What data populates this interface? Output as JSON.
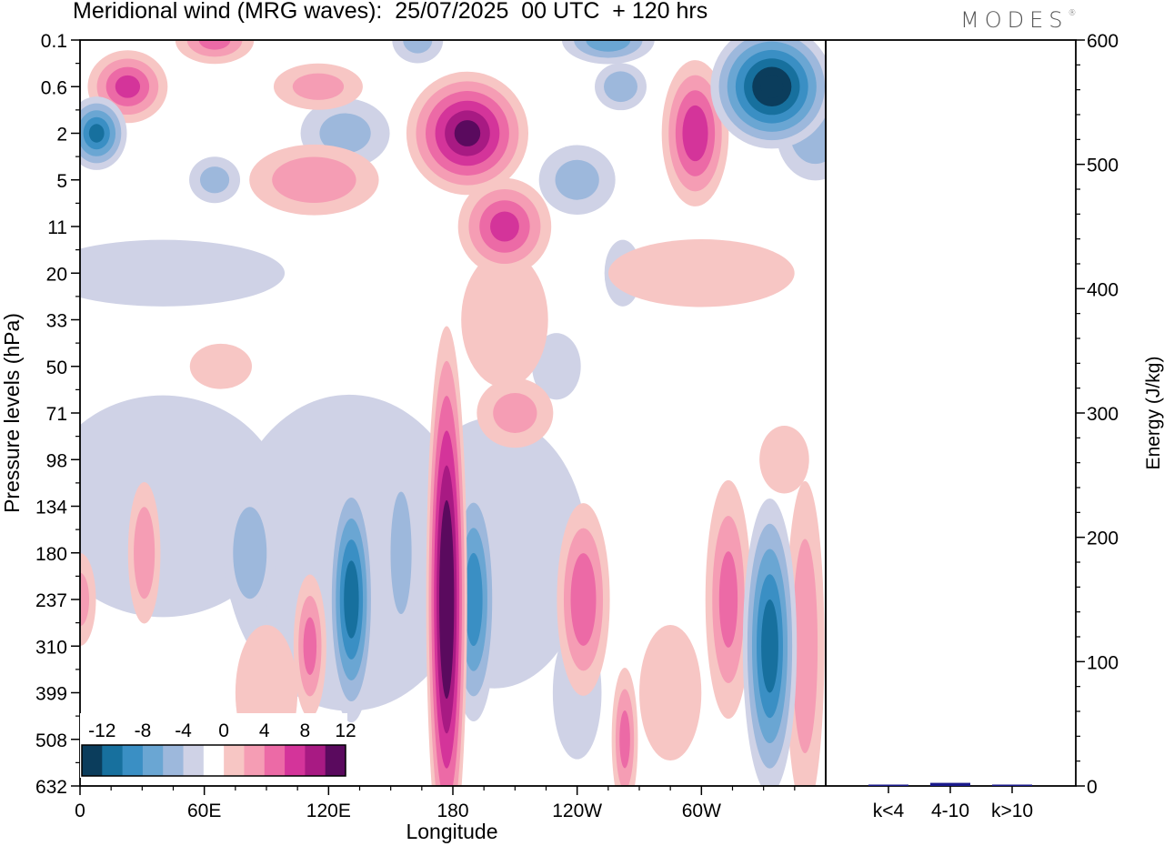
{
  "header": {
    "title": "Meridional wind (MRG waves):  25/07/2025  00 UTC  + 120 hrs",
    "logo": "MODES",
    "logo_mark": "®"
  },
  "colors": {
    "neg": [
      "#0b3d5c",
      "#17709e",
      "#3a8fc4",
      "#6aa6d3",
      "#9db8dc",
      "#cfd2e6"
    ],
    "zero": "#ffffff",
    "pos": [
      "#f7c6c4",
      "#f59db4",
      "#ec6aa6",
      "#d4349a",
      "#a81a83",
      "#5a0a5e"
    ],
    "bar": "#1a1a8c"
  },
  "chart_data": [
    {
      "type": "heatmap",
      "title": "Meridional wind (MRG waves):  25/07/2025  00 UTC  + 120 hrs",
      "xlabel": "Longitude",
      "ylabel": "Pressure levels (hPa)",
      "x_ticks": [
        "0",
        "60E",
        "120E",
        "180",
        "120W",
        "60W"
      ],
      "x_tick_values": [
        0,
        60,
        120,
        180,
        240,
        300
      ],
      "xlim": [
        0,
        360
      ],
      "y_ticks": [
        "0.1",
        "0.6",
        "2",
        "5",
        "11",
        "20",
        "33",
        "50",
        "71",
        "98",
        "134",
        "180",
        "237",
        "310",
        "399",
        "508",
        "632"
      ],
      "colorbar": {
        "ticks": [
          "-12",
          "-8",
          "-4",
          "0",
          "4",
          "8",
          "12"
        ],
        "levels": [
          -14,
          -12,
          -10,
          -8,
          -6,
          -4,
          -2,
          2,
          4,
          6,
          8,
          10,
          12,
          14
        ]
      },
      "features": [
        {
          "lon": 177,
          "level": "237",
          "lon_width": 6,
          "level_span": 11,
          "value": 15
        },
        {
          "lon": 190,
          "level": "237",
          "lon_width": 7,
          "level_span": 5,
          "value": -9
        },
        {
          "lon": 131,
          "level": "237",
          "lon_width": 7,
          "level_span": 5,
          "value": -11
        },
        {
          "lon": 333,
          "level": "310",
          "lon_width": 8,
          "level_span": 6,
          "value": -11
        },
        {
          "lon": 243,
          "level": "237",
          "lon_width": 8,
          "level_span": 4,
          "value": 7
        },
        {
          "lon": 313,
          "level": "237",
          "lon_width": 7,
          "level_span": 5,
          "value": 6
        },
        {
          "lon": 82,
          "level": "180",
          "lon_width": 8,
          "level_span": 3,
          "value": -5
        },
        {
          "lon": 155,
          "level": "180",
          "lon_width": 5,
          "level_span": 4,
          "value": -5
        },
        {
          "lon": 31,
          "level": "180",
          "lon_width": 5,
          "level_span": 3,
          "value": 5
        },
        {
          "lon": 111,
          "level": "310",
          "lon_width": 5,
          "level_span": 3,
          "value": 6
        },
        {
          "lon": 263,
          "level": "508",
          "lon_width": 4,
          "level_span": 3,
          "value": 6
        },
        {
          "lon": 350,
          "level": "310",
          "lon_width": 6,
          "level_span": 7,
          "value": 5
        },
        {
          "lon": 187,
          "level": "2",
          "lon_width": 18,
          "level_span": 2.5,
          "value": 12
        },
        {
          "lon": 205,
          "level": "11",
          "lon_width": 14,
          "level_span": 2,
          "value": 8
        },
        {
          "lon": 297,
          "level": "2",
          "lon_width": 10,
          "level_span": 3,
          "value": 9
        },
        {
          "lon": 334,
          "level": "0.6",
          "lon_width": 18,
          "level_span": 2.5,
          "value": -14
        },
        {
          "lon": 8,
          "level": "2",
          "lon_width": 9,
          "level_span": 1.5,
          "value": -10
        },
        {
          "lon": 23,
          "level": "0.6",
          "lon_width": 12,
          "level_span": 1.5,
          "value": 8
        },
        {
          "lon": 65,
          "level": "0.1",
          "lon_width": 12,
          "level_span": 1,
          "value": 6
        },
        {
          "lon": 255,
          "level": "0.1",
          "lon_width": 14,
          "level_span": 1,
          "value": -7
        },
        {
          "lon": 261,
          "level": "0.6",
          "lon_width": 8,
          "level_span": 1,
          "value": -5
        },
        {
          "lon": 240,
          "level": "5",
          "lon_width": 12,
          "level_span": 1.5,
          "value": -4
        },
        {
          "lon": 128,
          "level": "2",
          "lon_width": 14,
          "level_span": 1.5,
          "value": -4
        },
        {
          "lon": 65,
          "level": "5",
          "lon_width": 8,
          "level_span": 1,
          "value": -4
        },
        {
          "lon": 113,
          "level": "5",
          "lon_width": 20,
          "level_span": 1.5,
          "value": 5
        },
        {
          "lon": 163,
          "level": "0.1",
          "lon_width": 8,
          "level_span": 1,
          "value": -4
        },
        {
          "lon": 115,
          "level": "0.6",
          "lon_width": 14,
          "level_span": 1,
          "value": 4
        },
        {
          "lon": 210,
          "level": "71",
          "lon_width": 12,
          "level_span": 1.5,
          "value": 4
        },
        {
          "lon": 300,
          "level": "20",
          "lon_width": 30,
          "level_span": 1.5,
          "value": 3
        },
        {
          "lon": 205,
          "level": "33",
          "lon_width": 14,
          "level_span": 3,
          "value": 3
        },
        {
          "lon": 40,
          "level": "20",
          "lon_width": 40,
          "level_span": 1.5,
          "value": -2.5
        },
        {
          "lon": 262,
          "level": "20",
          "lon_width": 6,
          "level_span": 1.5,
          "value": -2.5
        },
        {
          "lon": 230,
          "level": "50",
          "lon_width": 8,
          "level_span": 1.5,
          "value": -2.5
        },
        {
          "lon": 68,
          "level": "50",
          "lon_width": 10,
          "level_span": 1,
          "value": 3
        },
        {
          "lon": 340,
          "level": "98",
          "lon_width": 8,
          "level_span": 1.5,
          "value": 3
        },
        {
          "lon": 40,
          "level": "134",
          "lon_width": 40,
          "level_span": 5,
          "value": -2.5
        },
        {
          "lon": 130,
          "level": "180",
          "lon_width": 40,
          "level_span": 7,
          "value": -3
        },
        {
          "lon": 200,
          "level": "180",
          "lon_width": 30,
          "level_span": 6,
          "value": -3
        },
        {
          "lon": 0,
          "level": "237",
          "lon_width": 5,
          "level_span": 2,
          "value": 4
        },
        {
          "lon": 90,
          "level": "399",
          "lon_width": 10,
          "level_span": 3,
          "value": 3
        },
        {
          "lon": 285,
          "level": "399",
          "lon_width": 10,
          "level_span": 3,
          "value": 3
        },
        {
          "lon": 355,
          "level": "2",
          "lon_width": 12,
          "level_span": 2,
          "value": -5
        },
        {
          "lon": 240,
          "level": "399",
          "lon_width": 8,
          "level_span": 3,
          "value": -2.5
        }
      ]
    },
    {
      "type": "bar",
      "categories": [
        "k<4",
        "4-10",
        "k>10"
      ],
      "values": [
        0.5,
        2.5,
        0.3
      ],
      "ylabel": "Energy (J/kg)",
      "ylim": [
        0,
        600
      ],
      "y_ticks": [
        "0",
        "100",
        "200",
        "300",
        "400",
        "500",
        "600"
      ],
      "y_tick_values": [
        0,
        100,
        200,
        300,
        400,
        500,
        600
      ]
    }
  ]
}
